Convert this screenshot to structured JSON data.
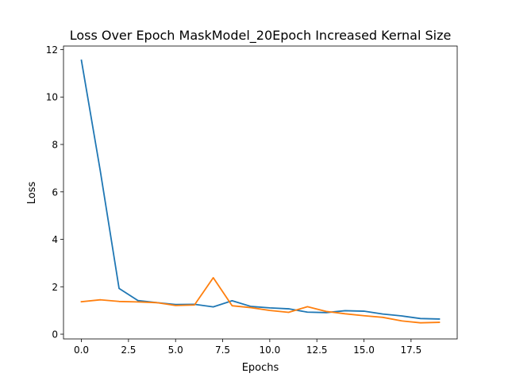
{
  "chart_data": {
    "type": "line",
    "title": "Loss Over Epoch MaskModel_20Epoch Increased Kernal Size",
    "xlabel": "Epochs",
    "ylabel": "Loss",
    "xlim": [
      -0.95,
      19.95
    ],
    "ylim": [
      -0.2,
      12.15
    ],
    "xticks": [
      0,
      2.5,
      5,
      7.5,
      10,
      12.5,
      15,
      17.5
    ],
    "xtick_labels": [
      "0.0",
      "2.5",
      "5.0",
      "7.5",
      "10.0",
      "12.5",
      "15.0",
      "17.5"
    ],
    "yticks": [
      0,
      2,
      4,
      6,
      8,
      10,
      12
    ],
    "ytick_labels": [
      "0",
      "2",
      "4",
      "6",
      "8",
      "10",
      "12"
    ],
    "grid": false,
    "x": [
      0,
      1,
      2,
      3,
      4,
      5,
      6,
      7,
      8,
      9,
      10,
      11,
      12,
      13,
      14,
      15,
      16,
      17,
      18,
      19
    ],
    "series": [
      {
        "color": "#1f77b4",
        "values": [
          11.55,
          6.9,
          1.93,
          1.42,
          1.33,
          1.25,
          1.26,
          1.15,
          1.41,
          1.17,
          1.11,
          1.07,
          0.93,
          0.91,
          0.99,
          0.97,
          0.85,
          0.77,
          0.66,
          0.64
        ]
      },
      {
        "color": "#ff7f0e",
        "values": [
          1.37,
          1.45,
          1.38,
          1.36,
          1.33,
          1.21,
          1.23,
          2.38,
          1.2,
          1.12,
          1.0,
          0.92,
          1.16,
          0.96,
          0.86,
          0.78,
          0.71,
          0.56,
          0.48,
          0.5
        ]
      }
    ]
  }
}
